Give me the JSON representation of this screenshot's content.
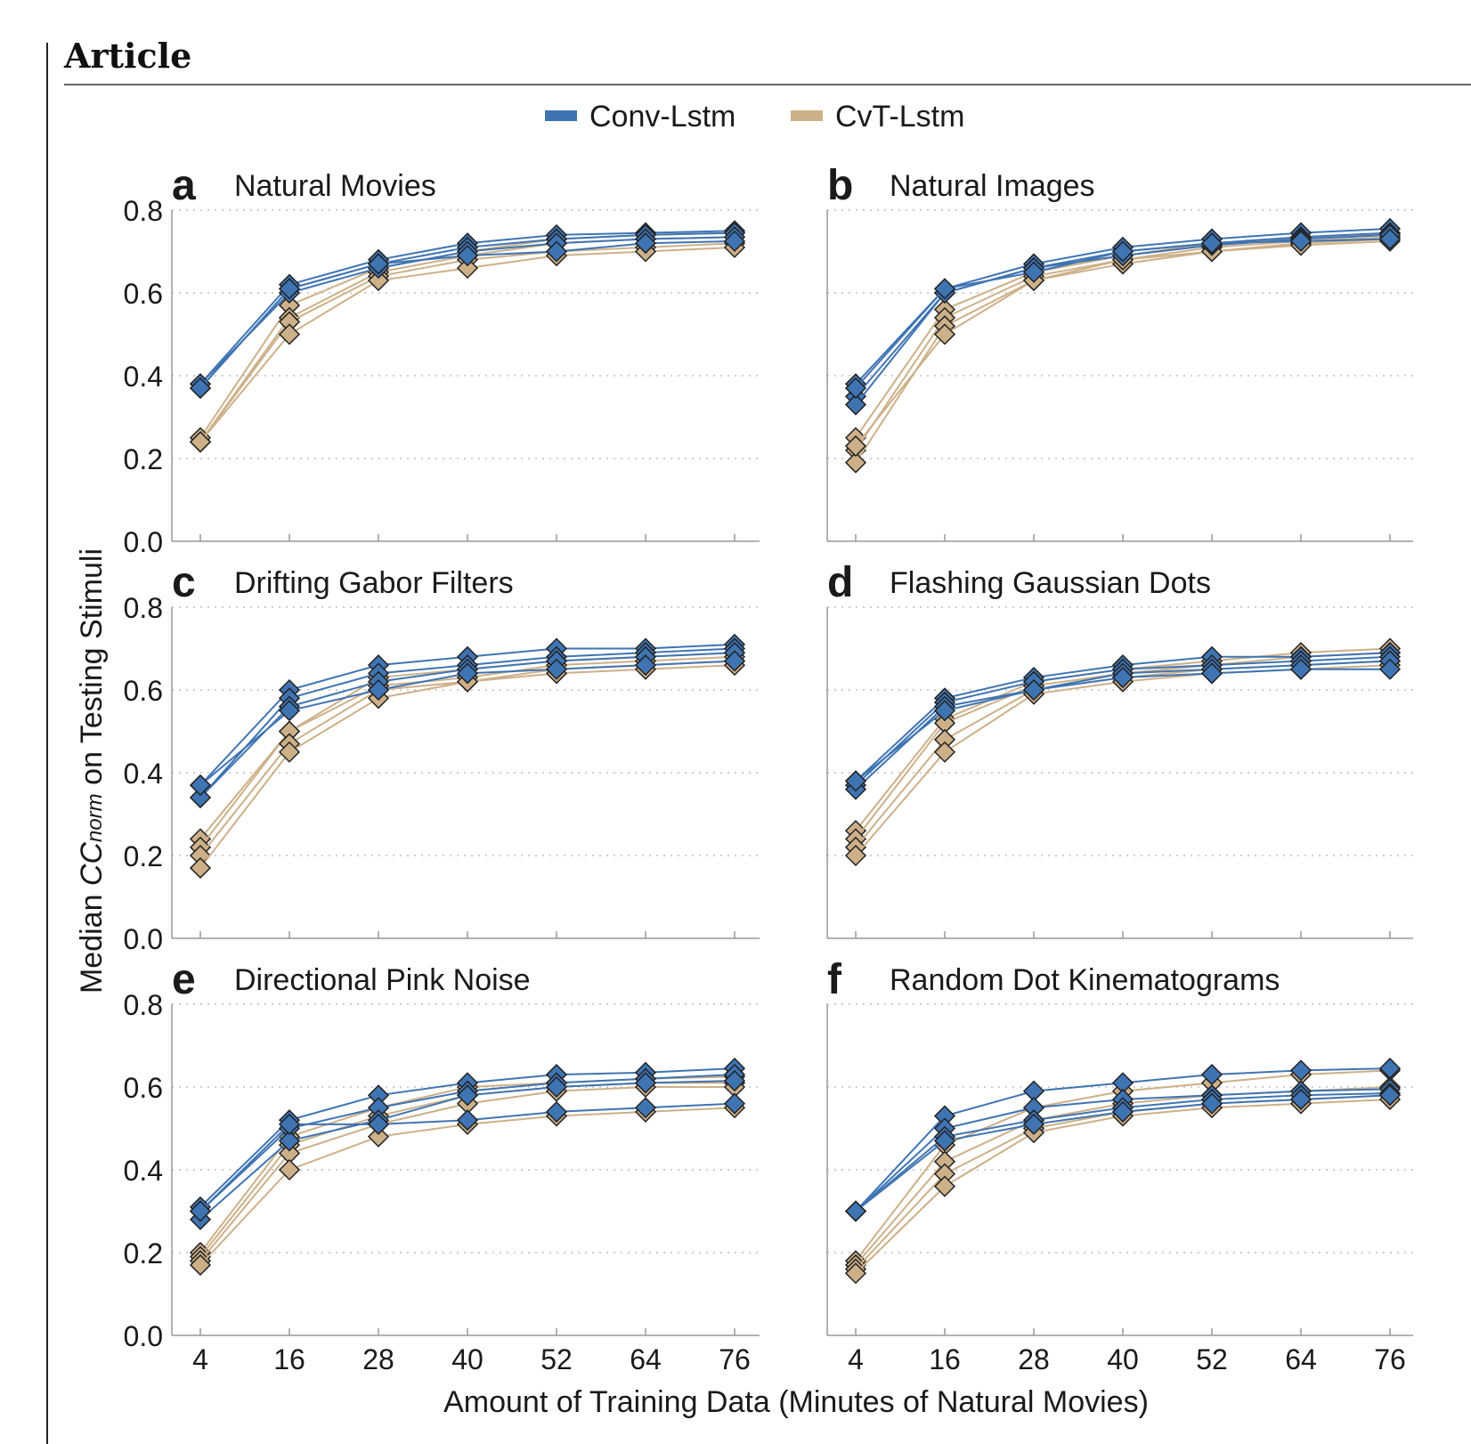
{
  "header": {
    "label": "Article"
  },
  "legend": [
    {
      "name": "Conv-Lstm",
      "color": "#3f74b3"
    },
    {
      "name": "CvT-Lstm",
      "color": "#cdb088"
    }
  ],
  "colors": {
    "conv": "#3f74b3",
    "cvt": "#cdb088",
    "edge": "#222222",
    "axis": "#999999",
    "grid": "#bdbdbd"
  },
  "figure": {
    "ylabel_prefix": "Median ",
    "ylabel_cc": "CC",
    "ylabel_norm": "norm",
    "ylabel_suffix": " on Testing Stimuli",
    "xlabel": "Amount of Training Data (Minutes of Natural Movies)"
  },
  "chart_data": [
    {
      "type": "line",
      "letter": "a",
      "title": "Natural Movies",
      "x": [
        4,
        16,
        28,
        40,
        52,
        64,
        76
      ],
      "ylim": [
        0,
        0.8
      ],
      "yticks": [
        "0.0",
        "0.2",
        "0.4",
        "0.6",
        "0.8"
      ],
      "grid": true,
      "legend": "top-center",
      "series": [
        {
          "group": "conv",
          "values": [
            0.38,
            0.62,
            0.68,
            0.72,
            0.74,
            0.745,
            0.75
          ]
        },
        {
          "group": "conv",
          "values": [
            0.37,
            0.61,
            0.67,
            0.71,
            0.73,
            0.74,
            0.745
          ]
        },
        {
          "group": "conv",
          "values": [
            0.38,
            0.6,
            0.66,
            0.7,
            0.72,
            0.73,
            0.735
          ]
        },
        {
          "group": "conv",
          "values": [
            0.37,
            0.61,
            0.67,
            0.69,
            0.7,
            0.72,
            0.725
          ]
        },
        {
          "group": "cvt",
          "values": [
            0.25,
            0.57,
            0.66,
            0.7,
            0.73,
            0.74,
            0.745
          ]
        },
        {
          "group": "cvt",
          "values": [
            0.24,
            0.54,
            0.65,
            0.69,
            0.72,
            0.73,
            0.735
          ]
        },
        {
          "group": "cvt",
          "values": [
            0.24,
            0.53,
            0.64,
            0.68,
            0.7,
            0.71,
            0.72
          ]
        },
        {
          "group": "cvt",
          "values": [
            0.24,
            0.5,
            0.63,
            0.66,
            0.69,
            0.7,
            0.71
          ]
        }
      ]
    },
    {
      "type": "line",
      "letter": "b",
      "title": "Natural Images",
      "x": [
        4,
        16,
        28,
        40,
        52,
        64,
        76
      ],
      "ylim": [
        0,
        0.8
      ],
      "yticks": [
        "0.0",
        "0.2",
        "0.4",
        "0.6",
        "0.8"
      ],
      "grid": true,
      "legend": "top-center",
      "series": [
        {
          "group": "conv",
          "values": [
            0.38,
            0.61,
            0.67,
            0.71,
            0.73,
            0.745,
            0.755
          ]
        },
        {
          "group": "conv",
          "values": [
            0.35,
            0.6,
            0.66,
            0.7,
            0.72,
            0.735,
            0.745
          ]
        },
        {
          "group": "conv",
          "values": [
            0.33,
            0.6,
            0.66,
            0.69,
            0.715,
            0.73,
            0.74
          ]
        },
        {
          "group": "conv",
          "values": [
            0.37,
            0.61,
            0.65,
            0.7,
            0.72,
            0.725,
            0.73
          ]
        },
        {
          "group": "cvt",
          "values": [
            0.25,
            0.56,
            0.65,
            0.69,
            0.72,
            0.73,
            0.745
          ]
        },
        {
          "group": "cvt",
          "values": [
            0.22,
            0.54,
            0.64,
            0.68,
            0.71,
            0.725,
            0.735
          ]
        },
        {
          "group": "cvt",
          "values": [
            0.19,
            0.52,
            0.63,
            0.67,
            0.7,
            0.72,
            0.73
          ]
        },
        {
          "group": "cvt",
          "values": [
            0.23,
            0.5,
            0.63,
            0.68,
            0.7,
            0.715,
            0.725
          ]
        }
      ]
    },
    {
      "type": "line",
      "letter": "c",
      "title": "Drifting Gabor Filters",
      "x": [
        4,
        16,
        28,
        40,
        52,
        64,
        76
      ],
      "ylim": [
        0,
        0.8
      ],
      "yticks": [
        "0.0",
        "0.2",
        "0.4",
        "0.6",
        "0.8"
      ],
      "grid": true,
      "legend": "top-center",
      "series": [
        {
          "group": "conv",
          "values": [
            0.37,
            0.6,
            0.66,
            0.68,
            0.7,
            0.7,
            0.71
          ]
        },
        {
          "group": "conv",
          "values": [
            0.34,
            0.58,
            0.64,
            0.66,
            0.68,
            0.69,
            0.7
          ]
        },
        {
          "group": "conv",
          "values": [
            0.34,
            0.56,
            0.62,
            0.65,
            0.67,
            0.68,
            0.69
          ]
        },
        {
          "group": "conv",
          "values": [
            0.37,
            0.55,
            0.6,
            0.64,
            0.65,
            0.66,
            0.67
          ]
        },
        {
          "group": "cvt",
          "values": [
            0.24,
            0.5,
            0.63,
            0.65,
            0.67,
            0.68,
            0.69
          ]
        },
        {
          "group": "cvt",
          "values": [
            0.22,
            0.5,
            0.61,
            0.63,
            0.66,
            0.67,
            0.68
          ]
        },
        {
          "group": "cvt",
          "values": [
            0.2,
            0.47,
            0.6,
            0.62,
            0.65,
            0.66,
            0.67
          ]
        },
        {
          "group": "cvt",
          "values": [
            0.17,
            0.45,
            0.58,
            0.62,
            0.64,
            0.65,
            0.66
          ]
        }
      ]
    },
    {
      "type": "line",
      "letter": "d",
      "title": "Flashing Gaussian Dots",
      "x": [
        4,
        16,
        28,
        40,
        52,
        64,
        76
      ],
      "ylim": [
        0,
        0.8
      ],
      "yticks": [
        "0.0",
        "0.2",
        "0.4",
        "0.6",
        "0.8"
      ],
      "grid": true,
      "legend": "top-center",
      "series": [
        {
          "group": "conv",
          "values": [
            0.38,
            0.58,
            0.63,
            0.66,
            0.68,
            0.68,
            0.69
          ]
        },
        {
          "group": "conv",
          "values": [
            0.37,
            0.57,
            0.62,
            0.65,
            0.66,
            0.67,
            0.68
          ]
        },
        {
          "group": "conv",
          "values": [
            0.36,
            0.56,
            0.6,
            0.64,
            0.65,
            0.66,
            0.67
          ]
        },
        {
          "group": "conv",
          "values": [
            0.38,
            0.55,
            0.6,
            0.63,
            0.64,
            0.65,
            0.65
          ]
        },
        {
          "group": "cvt",
          "values": [
            0.26,
            0.53,
            0.62,
            0.65,
            0.67,
            0.69,
            0.7
          ]
        },
        {
          "group": "cvt",
          "values": [
            0.24,
            0.52,
            0.61,
            0.64,
            0.66,
            0.68,
            0.69
          ]
        },
        {
          "group": "cvt",
          "values": [
            0.22,
            0.48,
            0.6,
            0.63,
            0.65,
            0.66,
            0.67
          ]
        },
        {
          "group": "cvt",
          "values": [
            0.2,
            0.45,
            0.59,
            0.62,
            0.64,
            0.65,
            0.66
          ]
        }
      ]
    },
    {
      "type": "line",
      "letter": "e",
      "title": "Directional Pink Noise",
      "x": [
        4,
        16,
        28,
        40,
        52,
        64,
        76
      ],
      "ylim": [
        0,
        0.8
      ],
      "yticks": [
        "0.0",
        "0.2",
        "0.4",
        "0.6",
        "0.8"
      ],
      "grid": true,
      "legend": "top-center",
      "series": [
        {
          "group": "conv",
          "values": [
            0.31,
            0.52,
            0.58,
            0.61,
            0.63,
            0.635,
            0.645
          ]
        },
        {
          "group": "conv",
          "values": [
            0.3,
            0.5,
            0.55,
            0.59,
            0.61,
            0.62,
            0.63
          ]
        },
        {
          "group": "conv",
          "values": [
            0.28,
            0.47,
            0.52,
            0.58,
            0.6,
            0.61,
            0.615
          ]
        },
        {
          "group": "conv",
          "values": [
            0.3,
            0.51,
            0.51,
            0.52,
            0.54,
            0.55,
            0.56
          ]
        },
        {
          "group": "cvt",
          "values": [
            0.2,
            0.48,
            0.55,
            0.6,
            0.61,
            0.62,
            0.625
          ]
        },
        {
          "group": "cvt",
          "values": [
            0.19,
            0.46,
            0.53,
            0.58,
            0.6,
            0.61,
            0.61
          ]
        },
        {
          "group": "cvt",
          "values": [
            0.18,
            0.44,
            0.51,
            0.56,
            0.59,
            0.6,
            0.6
          ]
        },
        {
          "group": "cvt",
          "values": [
            0.17,
            0.4,
            0.48,
            0.51,
            0.53,
            0.54,
            0.55
          ]
        }
      ]
    },
    {
      "type": "line",
      "letter": "f",
      "title": "Random Dot Kinematograms",
      "x": [
        4,
        16,
        28,
        40,
        52,
        64,
        76
      ],
      "ylim": [
        0,
        0.8
      ],
      "yticks": [
        "0.0",
        "0.2",
        "0.4",
        "0.6",
        "0.8"
      ],
      "grid": true,
      "legend": "top-center",
      "series": [
        {
          "group": "conv",
          "values": [
            0.3,
            0.53,
            0.59,
            0.61,
            0.63,
            0.64,
            0.645
          ]
        },
        {
          "group": "conv",
          "values": [
            0.3,
            0.5,
            0.55,
            0.57,
            0.58,
            0.59,
            0.595
          ]
        },
        {
          "group": "conv",
          "values": [
            0.3,
            0.48,
            0.52,
            0.55,
            0.57,
            0.58,
            0.585
          ]
        },
        {
          "group": "conv",
          "values": [
            0.3,
            0.47,
            0.51,
            0.54,
            0.56,
            0.57,
            0.58
          ]
        },
        {
          "group": "cvt",
          "values": [
            0.18,
            0.46,
            0.55,
            0.59,
            0.61,
            0.63,
            0.64
          ]
        },
        {
          "group": "cvt",
          "values": [
            0.17,
            0.42,
            0.52,
            0.56,
            0.58,
            0.59,
            0.6
          ]
        },
        {
          "group": "cvt",
          "values": [
            0.16,
            0.39,
            0.5,
            0.54,
            0.56,
            0.57,
            0.58
          ]
        },
        {
          "group": "cvt",
          "values": [
            0.15,
            0.36,
            0.49,
            0.53,
            0.55,
            0.56,
            0.57
          ]
        }
      ]
    }
  ]
}
